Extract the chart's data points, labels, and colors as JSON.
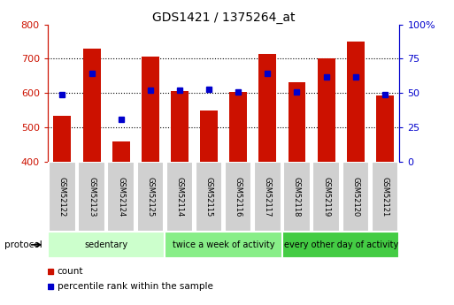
{
  "title": "GDS1421 / 1375264_at",
  "samples": [
    "GSM52122",
    "GSM52123",
    "GSM52124",
    "GSM52125",
    "GSM52114",
    "GSM52115",
    "GSM52116",
    "GSM52117",
    "GSM52118",
    "GSM52119",
    "GSM52120",
    "GSM52121"
  ],
  "counts": [
    533,
    730,
    460,
    707,
    607,
    549,
    604,
    714,
    632,
    700,
    750,
    592
  ],
  "percentile_ranks": [
    49,
    64,
    31,
    52,
    52,
    53,
    51,
    64,
    51,
    62,
    62,
    49
  ],
  "ylim_left": [
    400,
    800
  ],
  "ylim_right": [
    0,
    100
  ],
  "yticks_left": [
    400,
    500,
    600,
    700,
    800
  ],
  "yticks_right": [
    0,
    25,
    50,
    75,
    100
  ],
  "bar_color": "#cc1100",
  "dot_color": "#0000cc",
  "group_colors": [
    "#ccffcc",
    "#88ee88",
    "#44cc44"
  ],
  "groups": [
    {
      "label": "sedentary",
      "start": 0,
      "end": 4
    },
    {
      "label": "twice a week of activity",
      "start": 4,
      "end": 8
    },
    {
      "label": "every other day of activity",
      "start": 8,
      "end": 12
    }
  ],
  "protocol_label": "protocol",
  "legend_count": "count",
  "legend_percentile": "percentile rank within the sample",
  "sample_box_color": "#d0d0d0",
  "sample_box_edge": "#ffffff"
}
